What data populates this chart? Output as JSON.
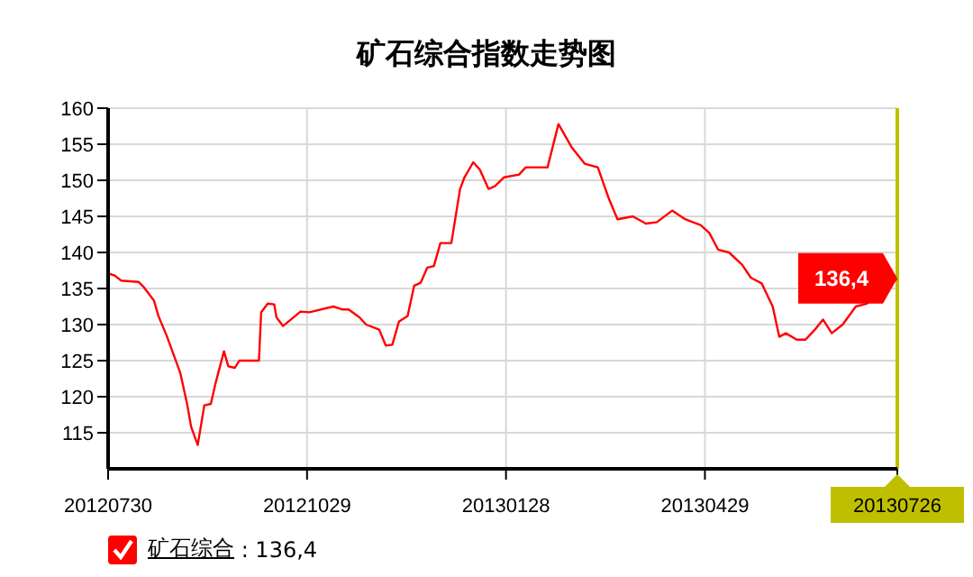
{
  "chart_data": {
    "type": "line",
    "title": "矿石综合指数走势图",
    "xlim": [
      "2012-07-30",
      "2013-07-26"
    ],
    "xticks": [
      {
        "value": "2012-07-30",
        "label": "20120730"
      },
      {
        "value": "2012-10-29",
        "label": "20121029"
      },
      {
        "value": "2013-01-28",
        "label": "20130128"
      },
      {
        "value": "2013-04-29",
        "label": "20130429"
      },
      {
        "value": "2013-07-26",
        "label": "20130726"
      }
    ],
    "ylim": [
      110,
      160
    ],
    "yticks": [
      115,
      120,
      125,
      130,
      135,
      140,
      145,
      150,
      155,
      160
    ],
    "grid": true,
    "legend": "bottom left",
    "marker": "none",
    "line_style": "solid",
    "ref_lines": [
      {
        "axis": "x",
        "value": "2013-07-26",
        "color": "#bfbf00"
      }
    ],
    "annotations": [
      {
        "text": "136,4",
        "x": "2013-07-26",
        "y": 136.4
      },
      ": 136,4"
    ],
    "x": [
      "2012-07-30",
      "2012-08-02",
      "2012-08-05",
      "2012-08-13",
      "2012-08-15",
      "2012-08-20",
      "2012-08-22",
      "2012-08-26",
      "2012-08-29",
      "2012-09-01",
      "2012-09-04",
      "2012-09-06",
      "2012-09-09",
      "2012-09-12",
      "2012-09-15",
      "2012-09-17",
      "2012-09-21",
      "2012-09-23",
      "2012-09-26",
      "2012-09-28",
      "2012-10-07",
      "2012-10-08",
      "2012-10-11",
      "2012-10-14",
      "2012-10-15",
      "2012-10-18",
      "2012-10-26",
      "2012-10-30",
      "2012-11-10",
      "2012-11-14",
      "2012-11-17",
      "2012-11-22",
      "2012-11-25",
      "2012-12-01",
      "2012-12-04",
      "2012-12-07",
      "2012-12-10",
      "2012-12-14",
      "2012-12-17",
      "2012-12-20",
      "2012-12-23",
      "2012-12-26",
      "2012-12-29",
      "2013-01-03",
      "2013-01-07",
      "2013-01-09",
      "2013-01-13",
      "2013-01-16",
      "2013-01-20",
      "2013-01-23",
      "2013-01-27",
      "2013-02-03",
      "2013-02-06",
      "2013-02-16",
      "2013-02-21",
      "2013-02-27",
      "2013-03-05",
      "2013-03-11",
      "2013-03-16",
      "2013-03-20",
      "2013-03-27",
      "2013-04-02",
      "2013-04-07",
      "2013-04-14",
      "2013-04-20",
      "2013-04-27",
      "2013-05-01",
      "2013-05-05",
      "2013-05-10",
      "2013-05-16",
      "2013-05-20",
      "2013-05-25",
      "2013-05-30",
      "2013-06-02",
      "2013-06-05",
      "2013-06-10",
      "2013-06-14",
      "2013-06-18",
      "2013-06-22",
      "2013-06-26",
      "2013-07-01",
      "2013-07-07",
      "2013-07-12",
      "2013-07-26"
    ],
    "series": [
      {
        "name": "矿石综合",
        "color": "#ff0000",
        "values": [
          137.1,
          136.8,
          136.1,
          135.9,
          135.3,
          133.3,
          131.2,
          128.3,
          125.8,
          123.3,
          119.2,
          115.8,
          113.3,
          118.8,
          119,
          121.7,
          126.3,
          124.2,
          124,
          125,
          125,
          131.7,
          132.9,
          132.8,
          131,
          129.8,
          131.8,
          131.7,
          132.5,
          132.1,
          132.1,
          131,
          130,
          129.3,
          127.1,
          127.2,
          130.4,
          131.2,
          135.4,
          135.8,
          137.9,
          138.1,
          141.3,
          141.3,
          148.8,
          150.4,
          152.5,
          151.5,
          148.8,
          149.2,
          150.4,
          150.8,
          151.8,
          151.8,
          157.8,
          154.6,
          152.3,
          151.8,
          147.5,
          144.6,
          145,
          144,
          144.2,
          145.8,
          144.6,
          143.8,
          142.7,
          140.4,
          140,
          138.3,
          136.5,
          135.7,
          132.5,
          128.3,
          128.8,
          127.9,
          127.9,
          129.2,
          130.7,
          128.8,
          130,
          132.5,
          132.9,
          136.4
        ]
      }
    ]
  }
}
